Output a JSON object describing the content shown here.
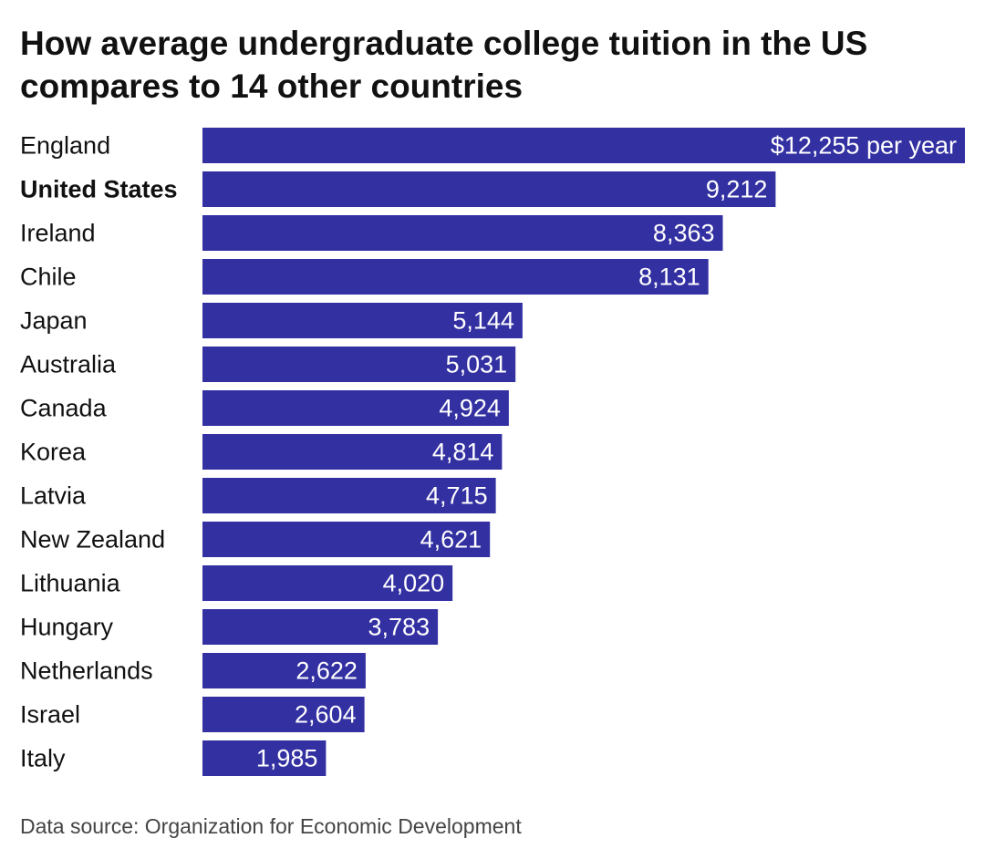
{
  "title": "How average undergraduate college tuition in the US compares to 14 other countries",
  "source": "Data source: Organization for Economic Development",
  "colors": {
    "bar": "#3330a2",
    "text": "#111111",
    "value_label": "#ffffff"
  },
  "chart_data": {
    "type": "bar",
    "orientation": "horizontal",
    "title": "How average undergraduate college tuition in the US compares to 14 other countries",
    "xlabel": "",
    "ylabel": "",
    "grid": false,
    "highlight": "United States",
    "first_label_suffix": " per year",
    "categories": [
      "England",
      "United States",
      "Ireland",
      "Chile",
      "Japan",
      "Australia",
      "Canada",
      "Korea",
      "Latvia",
      "New Zealand",
      "Lithuania",
      "Hungary",
      "Netherlands",
      "Israel",
      "Italy"
    ],
    "values": [
      12255,
      9212,
      8363,
      8131,
      5144,
      5031,
      4924,
      4814,
      4715,
      4621,
      4020,
      3783,
      2622,
      2604,
      1985
    ],
    "labels": [
      "$12,255 per year",
      "9,212",
      "8,363",
      "8,131",
      "5,144",
      "5,031",
      "4,924",
      "4,814",
      "4,715",
      "4,621",
      "4,020",
      "3,783",
      "2,622",
      "2,604",
      "1,985"
    ],
    "xlim": [
      0,
      12255
    ]
  }
}
